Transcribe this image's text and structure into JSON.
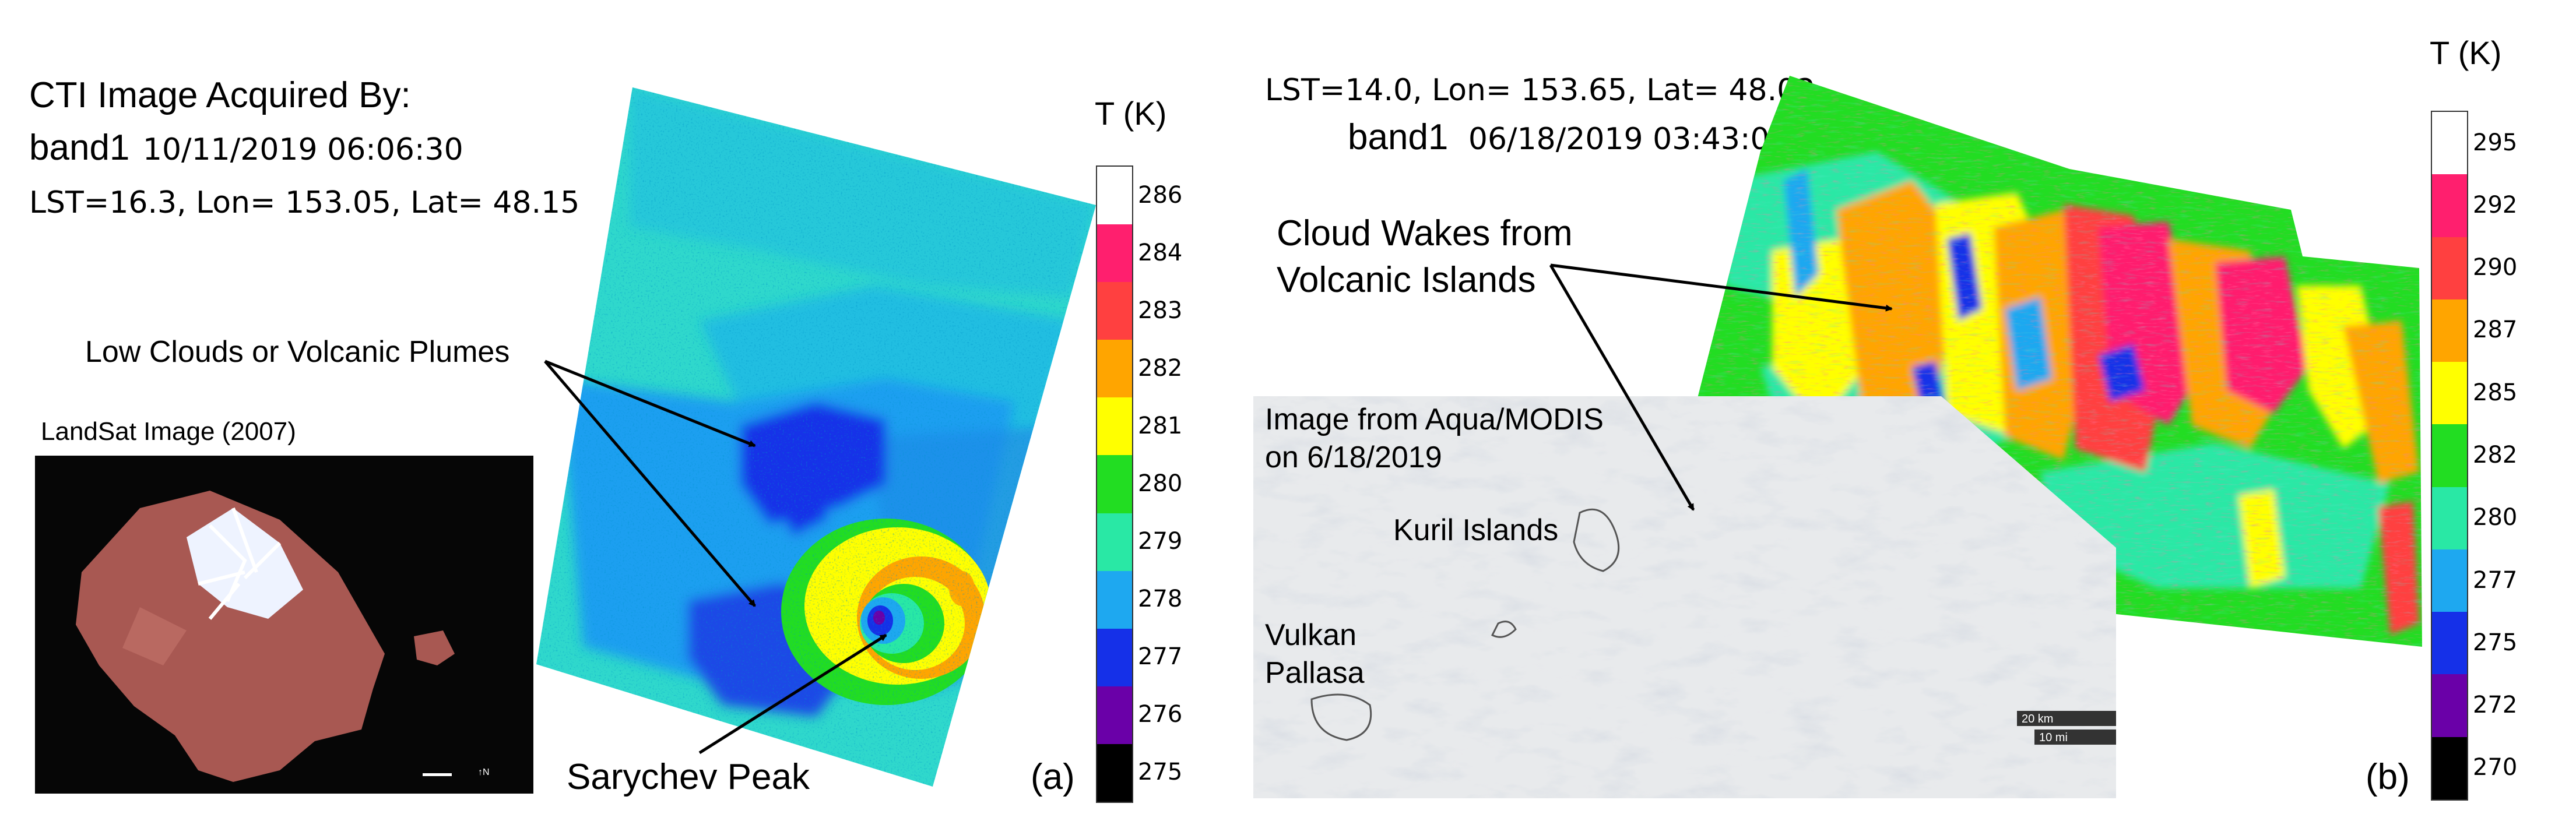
{
  "panel_a": {
    "title": "CTI Image Acquired By:",
    "band": "band1",
    "datetime": "10/11/2019 06:06:30",
    "lst": "LST=16.3, Lon= 153.05, Lat= 48.15",
    "plume_label": "Low Clouds or Volcanic Plumes",
    "landsat_label": "LandSat Image (2007)",
    "peak_label": "Sarychev Peak",
    "panel_tag": "(a)",
    "colorbar_title": "T (K)",
    "colorbar_ticks": [
      "286",
      "284",
      "283",
      "282",
      "281",
      "280",
      "279",
      "278",
      "277",
      "276",
      "275"
    ],
    "colorbar_colors": [
      "#ffffff",
      "#ff1f6e",
      "#ff4040",
      "#ffa500",
      "#ffff00",
      "#22dd22",
      "#29e8a5",
      "#1ea8f0",
      "#1530e8",
      "#6a00a8",
      "#000000"
    ]
  },
  "panel_b": {
    "lst": "LST=14.0, Lon= 153.65, Lat= 48.02",
    "band": "band1",
    "datetime": "06/18/2019 03:43:01",
    "wakes_label_1": "Cloud Wakes from",
    "wakes_label_2": "Volcanic Islands",
    "modis_label_1": "Image from Aqua/MODIS",
    "modis_label_2": "on 6/18/2019",
    "kuril_label": "Kuril Islands",
    "vulkan_label_1": "Vulkan",
    "vulkan_label_2": "Pallasa",
    "scale_km": "20 km",
    "scale_mi": "10 mi",
    "panel_tag": "(b)",
    "colorbar_title": "T (K)",
    "colorbar_ticks": [
      "295",
      "292",
      "290",
      "287",
      "285",
      "282",
      "280",
      "277",
      "275",
      "272",
      "270"
    ],
    "colorbar_colors": [
      "#ffffff",
      "#ff1f6e",
      "#ff4040",
      "#ffa500",
      "#ffff00",
      "#22dd22",
      "#29e8a5",
      "#1ea8f0",
      "#1530e8",
      "#6a00a8",
      "#000000"
    ]
  }
}
